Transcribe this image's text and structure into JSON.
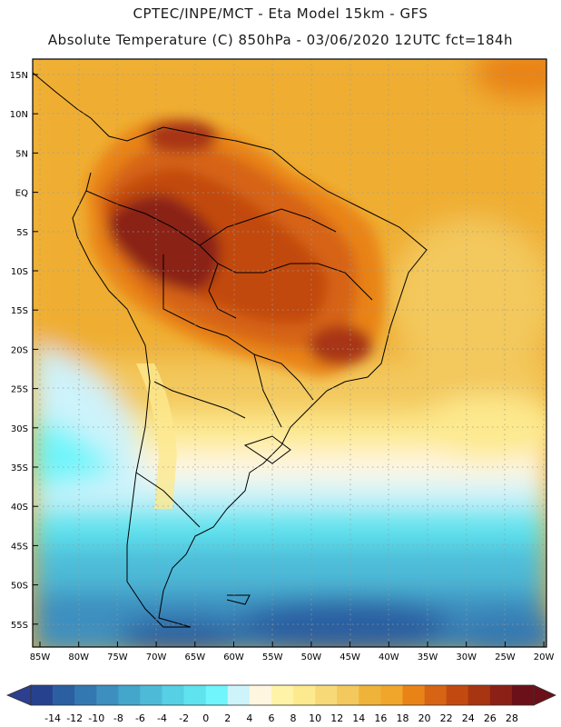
{
  "header": {
    "line1": "CPTEC/INPE/MCT  -   Eta Model 15km  -  GFS",
    "line2": "Absolute Temperature (C) 850hPa  - 03/06/2020 12UTC fct=184h"
  },
  "axes": {
    "lat_labels": [
      "15N",
      "10N",
      "5N",
      "EQ",
      "5S",
      "10S",
      "15S",
      "20S",
      "25S",
      "30S",
      "35S",
      "40S",
      "45S",
      "50S",
      "55S"
    ],
    "lon_labels": [
      "85W",
      "80W",
      "75W",
      "70W",
      "65W",
      "60W",
      "55W",
      "50W",
      "45W",
      "40W",
      "35W",
      "30W",
      "25W",
      "20W"
    ]
  },
  "colorbar": {
    "tick_labels": [
      "-14",
      "-12",
      "-10",
      "-8",
      "-6",
      "-4",
      "-2",
      "0",
      "2",
      "4",
      "6",
      "8",
      "10",
      "12",
      "14",
      "16",
      "18",
      "20",
      "22",
      "24",
      "26",
      "28"
    ],
    "under_color": "#2d3f8f",
    "over_color": "#6b1018",
    "colors": [
      "#26428f",
      "#2b5fa1",
      "#3478b1",
      "#3c8fbf",
      "#44a6cb",
      "#4dbbd8",
      "#55d0e4",
      "#5fe3ee",
      "#6ff5fb",
      "#cdf3fb",
      "#fff6e0",
      "#fff3a8",
      "#fde98e",
      "#f8d977",
      "#f3c85c",
      "#efb33a",
      "#f0a62a",
      "#e98318",
      "#d66414",
      "#c24a10",
      "#a83512",
      "#8a2016",
      "#6b1018"
    ]
  }
}
